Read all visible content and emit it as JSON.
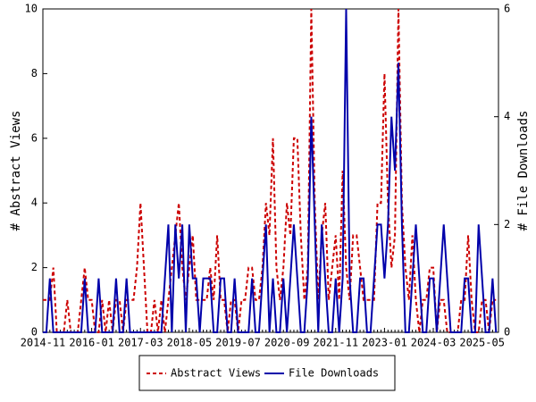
{
  "chart_data": {
    "type": "line",
    "ylabel": "# Abstract Views",
    "y2label": "# File Downloads",
    "categories": [
      "2014-11",
      null,
      null,
      null,
      null,
      null,
      null,
      null,
      null,
      null,
      null,
      null,
      null,
      null,
      "2016-01",
      null,
      null,
      null,
      null,
      null,
      null,
      null,
      null,
      null,
      null,
      null,
      null,
      null,
      "2017-03",
      null,
      null,
      null,
      null,
      null,
      null,
      null,
      null,
      null,
      null,
      null,
      null,
      null,
      "2018-05",
      null,
      null,
      null,
      null,
      null,
      null,
      null,
      null,
      null,
      null,
      null,
      null,
      null,
      "2019-07",
      null,
      null,
      null,
      null,
      null,
      null,
      null,
      null,
      null,
      null,
      null,
      null,
      null,
      "2020-09",
      null,
      null,
      null,
      null,
      null,
      null,
      null,
      null,
      null,
      null,
      null,
      null,
      null,
      "2021-11",
      null,
      null,
      null,
      null,
      null,
      null,
      null,
      null,
      null,
      null,
      null,
      null,
      null,
      "2023-01",
      null,
      null,
      null,
      null,
      null,
      null,
      null,
      null,
      null,
      null,
      null,
      null,
      null,
      "2024-03",
      null,
      null,
      null,
      null,
      null,
      null,
      null,
      null,
      null,
      null,
      null,
      null,
      null,
      "2025-05",
      null,
      null,
      null,
      null
    ],
    "series": [
      {
        "name": "Abstract Views",
        "color": "#cc0000",
        "dashed": true,
        "values": [
          1,
          1,
          1,
          2,
          0,
          0,
          0,
          1,
          0,
          0,
          0,
          1,
          2,
          1,
          1,
          0,
          0,
          1,
          0,
          1,
          0,
          1,
          1,
          0,
          1,
          1,
          1,
          2,
          4,
          2,
          0,
          0,
          1,
          0,
          1,
          0,
          1,
          2,
          3,
          4,
          2,
          1,
          2,
          3,
          1,
          1,
          1,
          1,
          2,
          1,
          3,
          1,
          1,
          0,
          1,
          1,
          0,
          1,
          1,
          2,
          2,
          1,
          1,
          2,
          4,
          3,
          6,
          2,
          1,
          2,
          4,
          3,
          6,
          6,
          3,
          1,
          2,
          10,
          4,
          1,
          3,
          4,
          1,
          2,
          3,
          1,
          5,
          2,
          1,
          3,
          3,
          2,
          1,
          1,
          1,
          1,
          4,
          4,
          8,
          4,
          2,
          3,
          10,
          4,
          2,
          1,
          3,
          1,
          0,
          1,
          1,
          2,
          2,
          0,
          1,
          1,
          0,
          0,
          0,
          0,
          1,
          1,
          3,
          1,
          0,
          0,
          1,
          1,
          0,
          1,
          1
        ]
      },
      {
        "name": "File Downloads",
        "color": "#0000aa",
        "dashed": false,
        "axis": "y2",
        "values": [
          0,
          0,
          1,
          0,
          0,
          0,
          0,
          0,
          0,
          0,
          0,
          0,
          1,
          0,
          0,
          0,
          1,
          0,
          0,
          0,
          0,
          1,
          0,
          0,
          1,
          0,
          0,
          0,
          0,
          0,
          0,
          0,
          0,
          0,
          0,
          1,
          2,
          0,
          2,
          1,
          2,
          0,
          2,
          1,
          1,
          0,
          1,
          1,
          1,
          0,
          0,
          1,
          1,
          0,
          0,
          1,
          0,
          0,
          0,
          0,
          1,
          0,
          0,
          1,
          2,
          0,
          1,
          0,
          0,
          1,
          0,
          1,
          2,
          1,
          0,
          0,
          1,
          4,
          2,
          0,
          2,
          1,
          0,
          0,
          1,
          0,
          1,
          6,
          1,
          0,
          0,
          1,
          1,
          0,
          0,
          1,
          2,
          2,
          1,
          2,
          4,
          3,
          5,
          2,
          0,
          0,
          1,
          2,
          1,
          0,
          0,
          1,
          1,
          0,
          1,
          2,
          1,
          0,
          0,
          0,
          0,
          1,
          1,
          0,
          0,
          2,
          1,
          0,
          0,
          1,
          0
        ]
      }
    ],
    "ylim": [
      0,
      10
    ],
    "yticks": [
      0,
      2,
      4,
      6,
      8,
      10
    ],
    "y2lim": [
      0,
      6
    ],
    "y2ticks": [
      0,
      2,
      4,
      6
    ],
    "legend": "bottom"
  }
}
